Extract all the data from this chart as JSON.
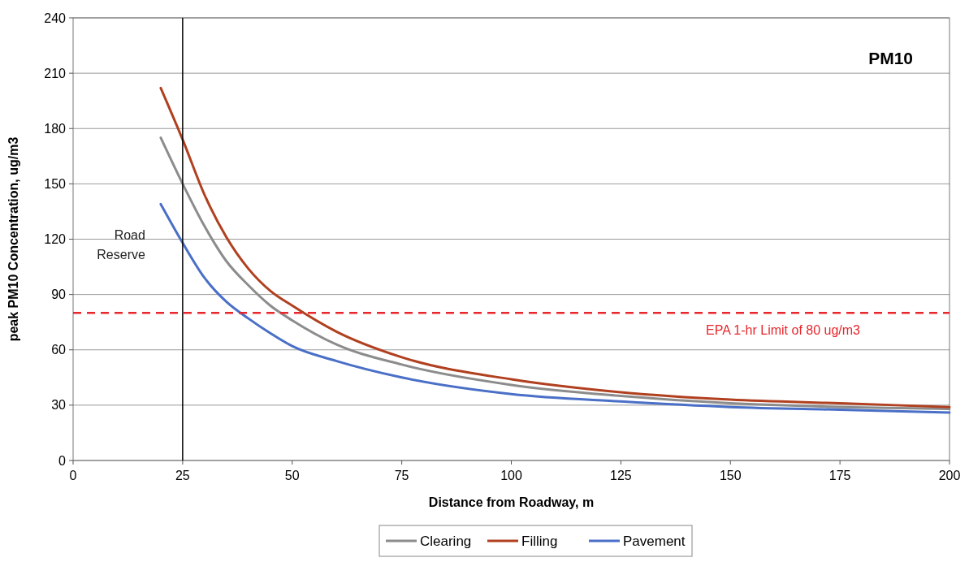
{
  "chart_data": {
    "type": "line",
    "title": "PM10",
    "xlabel": "Distance from Roadway, m",
    "ylabel": "peak PM10 Concentration, ug/m3",
    "x": [
      20,
      25,
      30,
      35,
      40,
      45,
      50,
      60,
      75,
      100,
      125,
      150,
      175,
      200
    ],
    "series": [
      {
        "name": "Clearing",
        "color": "#8c8c8c",
        "values": [
          175,
          150,
          127,
          108,
          95,
          84,
          76,
          63,
          52,
          41,
          35,
          31,
          29,
          28
        ]
      },
      {
        "name": "Filling",
        "color": "#b0401f",
        "values": [
          202,
          174,
          144,
          121,
          104,
          92,
          84,
          70,
          56,
          44,
          37,
          33,
          31,
          29
        ]
      },
      {
        "name": "Pavement",
        "color": "#4a6fc7",
        "values": [
          139,
          118,
          99,
          86,
          77,
          69,
          62,
          54,
          45,
          36,
          32,
          29,
          27.5,
          26
        ]
      }
    ],
    "xlim": [
      0,
      200
    ],
    "xticks": [
      0,
      25,
      50,
      75,
      100,
      125,
      150,
      175,
      200
    ],
    "ylim": [
      0,
      240
    ],
    "yticks": [
      0,
      30,
      60,
      90,
      120,
      150,
      180,
      210,
      240
    ],
    "ref_lines": [
      {
        "axis": "x",
        "value": 25,
        "label": "Road Reserve",
        "color": "#000000",
        "line_style": "solid"
      },
      {
        "axis": "y",
        "value": 80,
        "label": "EPA 1-hr Limit of 80 ug/m3",
        "color": "#e8262b",
        "line_style": "dashed"
      }
    ],
    "grid": "y",
    "legend": "bottom",
    "marker": "none",
    "line_style": "solid"
  }
}
